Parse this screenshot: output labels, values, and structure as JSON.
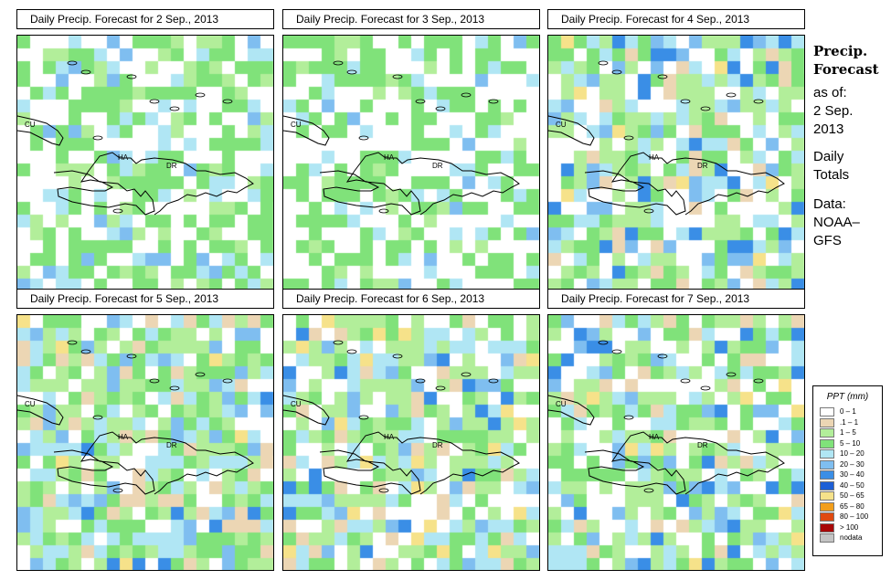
{
  "panels": [
    {
      "title": "Daily Precip. Forecast for  2 Sep., 2013",
      "seed": 11,
      "wet": 0.55
    },
    {
      "title": "Daily Precip. Forecast for  3 Sep., 2013",
      "seed": 23,
      "wet": 0.45
    },
    {
      "title": "Daily Precip. Forecast for  4 Sep., 2013",
      "seed": 37,
      "wet": 0.85
    },
    {
      "title": "Daily Precip. Forecast for  5 Sep., 2013",
      "seed": 41,
      "wet": 1.0
    },
    {
      "title": "Daily Precip. Forecast for  6 Sep., 2013",
      "seed": 53,
      "wet": 0.95
    },
    {
      "title": "Daily Precip. Forecast for  7 Sep., 2013",
      "seed": 67,
      "wet": 0.9
    }
  ],
  "map_labels": {
    "cu": "CU",
    "ha": "HA",
    "dr": "DR"
  },
  "side": {
    "title_line1": "Precip.",
    "title_line2": "Forecast",
    "asof": "as of:",
    "date_line1": "2 Sep.",
    "date_line2": "2013",
    "totals_line1": "Daily",
    "totals_line2": "Totals",
    "data_line1": "Data:",
    "data_line2": "NOAA–",
    "data_line3": "GFS"
  },
  "legend": {
    "title": "PPT (mm)",
    "items": [
      {
        "label": "0 – 1",
        "color": "#ffffff"
      },
      {
        "label": ".1 – 1",
        "color": "#ecd6b4"
      },
      {
        "label": "1 – 5",
        "color": "#b2ee9a"
      },
      {
        "label": "5 – 10",
        "color": "#80e27a"
      },
      {
        "label": "10 – 20",
        "color": "#b0e6f4"
      },
      {
        "label": "20 – 30",
        "color": "#7fbef0"
      },
      {
        "label": "30 – 40",
        "color": "#3a8ee6"
      },
      {
        "label": "40 – 50",
        "color": "#1d5fd6"
      },
      {
        "label": "50 – 65",
        "color": "#f6e28a"
      },
      {
        "label": "65 – 80",
        "color": "#f29e1c"
      },
      {
        "label": "80 – 100",
        "color": "#e04a10"
      },
      {
        "label": "> 100",
        "color": "#a80808"
      },
      {
        "label": "nodata",
        "color": "#c4c4c4"
      }
    ]
  }
}
